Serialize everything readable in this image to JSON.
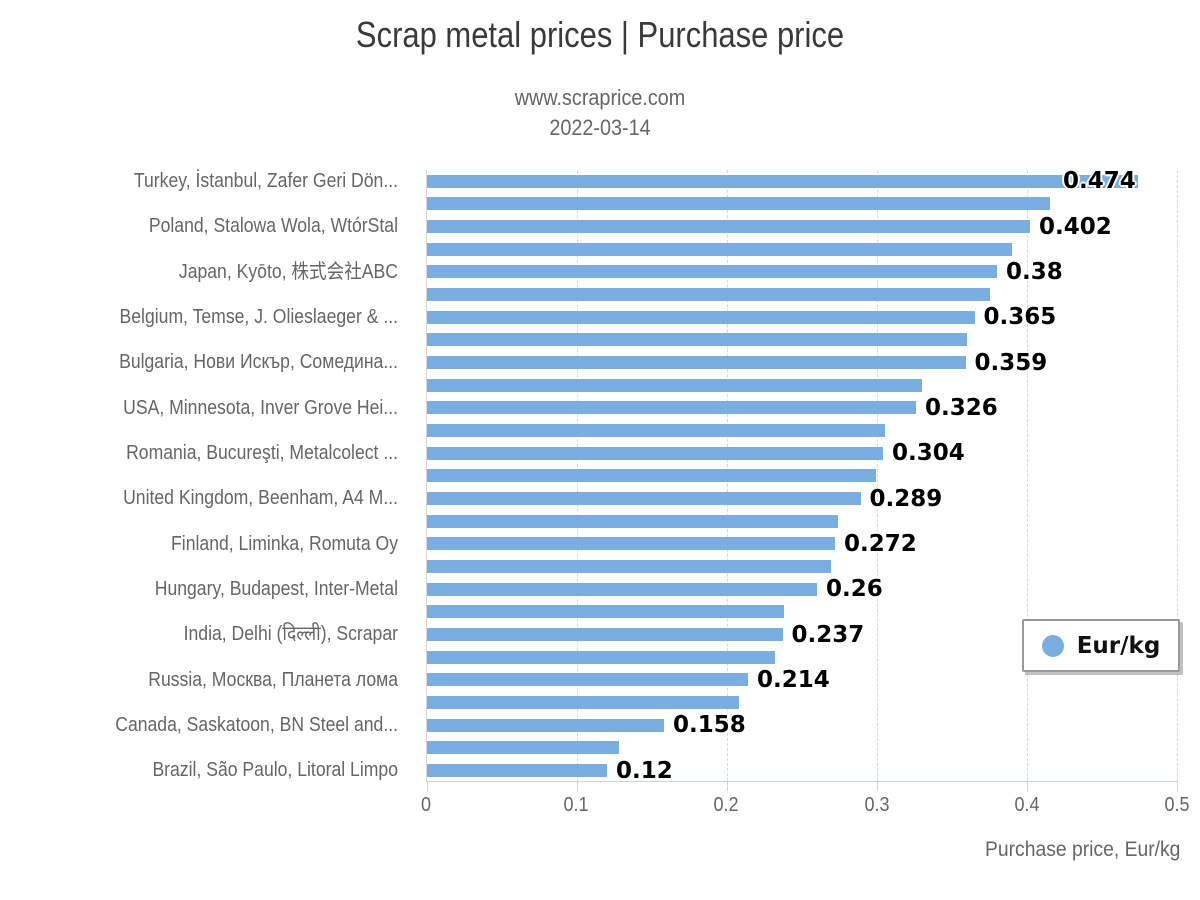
{
  "title": "Scrap metal prices | Purchase price",
  "subtitle1": "www.scraprice.com",
  "subtitle2": "2022-03-14",
  "legend_label": "Eur/kg",
  "x_axis_title": "Purchase price, Eur/kg",
  "colors": {
    "bar": "#7aade0",
    "grid": "#d8d8d8",
    "axis_line": "#c8d4e3",
    "muted_text": "#666666",
    "title_text": "#3a3a3a",
    "value_text": "#000000"
  },
  "chart_data": {
    "type": "bar",
    "orientation": "horizontal",
    "title": "Scrap metal prices | Purchase price",
    "subtitle": [
      "www.scraprice.com",
      "2022-03-14"
    ],
    "xlabel": "Purchase price, Eur/kg",
    "ylabel": "",
    "xlim": [
      0,
      0.5
    ],
    "x_ticks": [
      0,
      0.1,
      0.2,
      0.3,
      0.4,
      0.5
    ],
    "x_tick_labels": [
      "0",
      "0.1",
      "0.2",
      "0.3",
      "0.4",
      "0.5"
    ],
    "grid": "vertical-dashed",
    "legend": {
      "label": "Eur/kg",
      "position": "right-middle",
      "marker": "circle"
    },
    "note": "Rows without value_label are unlabeled secondary bars; their values are estimated from pixel lengths.",
    "rows": [
      {
        "category": "Turkey, İstanbul, Zafer Geri Dön...",
        "value": 0.474,
        "value_label": "0.474",
        "value_inside": true
      },
      {
        "category": "",
        "value": 0.415,
        "value_label": ""
      },
      {
        "category": "Poland, Stalowa Wola, WtórStal",
        "value": 0.402,
        "value_label": "0.402"
      },
      {
        "category": "",
        "value": 0.39,
        "value_label": ""
      },
      {
        "category": "Japan, Kyōto, 株式会社ABC",
        "value": 0.38,
        "value_label": "0.38"
      },
      {
        "category": "",
        "value": 0.375,
        "value_label": ""
      },
      {
        "category": "Belgium, Temse, J. Olieslaeger & ...",
        "value": 0.365,
        "value_label": "0.365"
      },
      {
        "category": "",
        "value": 0.36,
        "value_label": ""
      },
      {
        "category": "Bulgaria, Нови Искър, Сомедина...",
        "value": 0.359,
        "value_label": "0.359"
      },
      {
        "category": "",
        "value": 0.33,
        "value_label": ""
      },
      {
        "category": "USA, Minnesota, Inver Grove Hei...",
        "value": 0.326,
        "value_label": "0.326"
      },
      {
        "category": "",
        "value": 0.305,
        "value_label": ""
      },
      {
        "category": "Romania, Bucureşti, Metalcolect ...",
        "value": 0.304,
        "value_label": "0.304"
      },
      {
        "category": "",
        "value": 0.299,
        "value_label": ""
      },
      {
        "category": "United Kingdom, Beenham, A4 M...",
        "value": 0.289,
        "value_label": "0.289"
      },
      {
        "category": "",
        "value": 0.274,
        "value_label": ""
      },
      {
        "category": "Finland, Liminka, Romuta Oy",
        "value": 0.272,
        "value_label": "0.272"
      },
      {
        "category": "",
        "value": 0.269,
        "value_label": ""
      },
      {
        "category": "Hungary, Budapest, Inter-Metal",
        "value": 0.26,
        "value_label": "0.26"
      },
      {
        "category": "",
        "value": 0.238,
        "value_label": ""
      },
      {
        "category": "India, Delhi (दिल्ली), Scrapar",
        "value": 0.237,
        "value_label": "0.237"
      },
      {
        "category": "",
        "value": 0.232,
        "value_label": ""
      },
      {
        "category": "Russia, Москва, Планета лома",
        "value": 0.214,
        "value_label": "0.214"
      },
      {
        "category": "",
        "value": 0.208,
        "value_label": ""
      },
      {
        "category": "Canada, Saskatoon, BN Steel and...",
        "value": 0.158,
        "value_label": "0.158"
      },
      {
        "category": "",
        "value": 0.128,
        "value_label": ""
      },
      {
        "category": "Brazil, São Paulo, Litoral Limpo",
        "value": 0.12,
        "value_label": "0.12"
      }
    ]
  }
}
